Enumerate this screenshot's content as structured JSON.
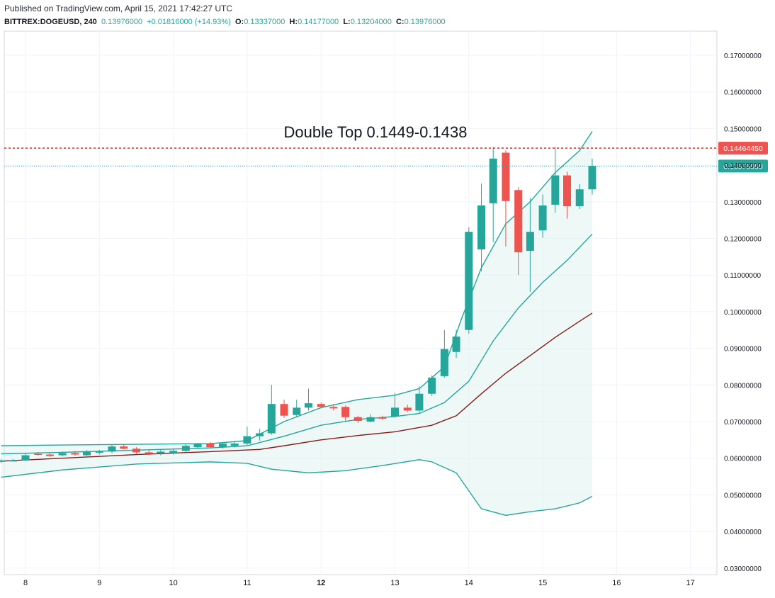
{
  "header": {
    "published": "Published on TradingView.com, April 15, 2021 17:42:27 UTC",
    "symbol": "BITTREX:DOGEUSD, 240",
    "last": "0.13976000",
    "change": "+0.01816000 (+14.93%)",
    "o_label": "O:",
    "o_value": "0.13337000",
    "h_label": "H:",
    "h_value": "0.14177000",
    "l_label": "L:",
    "l_value": "0.13204000",
    "c_label": "C:",
    "c_value": "0.13976000"
  },
  "colors": {
    "up": "#26a69a",
    "down": "#ef5350",
    "band": "#26a69a",
    "basis": "#8b1a1a",
    "fill": "#e0f2f1",
    "resistance": "#e53935",
    "grid": "#f0f3fa"
  },
  "chart_data": {
    "type": "candlestick",
    "title": "Double Top 0.1449-0.1438",
    "x_ticks": [
      {
        "label": "8",
        "x": 8
      },
      {
        "label": "9",
        "x": 9
      },
      {
        "label": "10",
        "x": 10
      },
      {
        "label": "11",
        "x": 11
      },
      {
        "label": "12",
        "x": 12
      },
      {
        "label": "13",
        "x": 13
      },
      {
        "label": "14",
        "x": 14
      },
      {
        "label": "15",
        "x": 15
      },
      {
        "label": "16",
        "x": 16
      },
      {
        "label": "17",
        "x": 17
      }
    ],
    "ylim": [
      0.0295,
      0.1755
    ],
    "xlim": [
      7.67,
      17.4
    ],
    "y_ticks": [
      "0.17000000",
      "0.16000000",
      "0.15000000",
      "0.14000000",
      "0.13000000",
      "0.12000000",
      "0.11000000",
      "0.10000000",
      "0.09000000",
      "0.08000000",
      "0.07000000",
      "0.06000000",
      "0.05000000",
      "0.04000000",
      "0.03000000"
    ],
    "price_labels": [
      {
        "text": "0.14464450",
        "value": 0.1446445,
        "kind": "resistance"
      },
      {
        "text": "0.13976000",
        "value": 0.13976,
        "kind": "last"
      }
    ],
    "resistance_line": 0.1446445,
    "last_price_line": 0.13976,
    "candles": [
      {
        "t": 7.67,
        "o": 0.059,
        "h": 0.0598,
        "l": 0.0587,
        "c": 0.0594
      },
      {
        "t": 7.83,
        "o": 0.0594,
        "h": 0.0598,
        "l": 0.0592,
        "c": 0.0594
      },
      {
        "t": 8.0,
        "o": 0.0594,
        "h": 0.0612,
        "l": 0.0592,
        "c": 0.0608
      },
      {
        "t": 8.17,
        "o": 0.0612,
        "h": 0.0617,
        "l": 0.0606,
        "c": 0.061
      },
      {
        "t": 8.33,
        "o": 0.061,
        "h": 0.0614,
        "l": 0.0604,
        "c": 0.0606
      },
      {
        "t": 8.5,
        "o": 0.0608,
        "h": 0.0618,
        "l": 0.0605,
        "c": 0.0614
      },
      {
        "t": 8.67,
        "o": 0.0614,
        "h": 0.062,
        "l": 0.0606,
        "c": 0.061
      },
      {
        "t": 8.83,
        "o": 0.0608,
        "h": 0.0622,
        "l": 0.0606,
        "c": 0.0618
      },
      {
        "t": 9.0,
        "o": 0.0616,
        "h": 0.0623,
        "l": 0.061,
        "c": 0.0618
      },
      {
        "t": 9.17,
        "o": 0.0618,
        "h": 0.0636,
        "l": 0.0614,
        "c": 0.0632
      },
      {
        "t": 9.33,
        "o": 0.0632,
        "h": 0.0636,
        "l": 0.0624,
        "c": 0.0626
      },
      {
        "t": 9.5,
        "o": 0.0626,
        "h": 0.063,
        "l": 0.0612,
        "c": 0.0616
      },
      {
        "t": 9.67,
        "o": 0.0616,
        "h": 0.0622,
        "l": 0.0608,
        "c": 0.0612
      },
      {
        "t": 9.83,
        "o": 0.0614,
        "h": 0.0624,
        "l": 0.0608,
        "c": 0.0618
      },
      {
        "t": 10.0,
        "o": 0.0614,
        "h": 0.0626,
        "l": 0.061,
        "c": 0.062
      },
      {
        "t": 10.17,
        "o": 0.062,
        "h": 0.064,
        "l": 0.0616,
        "c": 0.0634
      },
      {
        "t": 10.33,
        "o": 0.063,
        "h": 0.0642,
        "l": 0.0626,
        "c": 0.064
      },
      {
        "t": 10.5,
        "o": 0.064,
        "h": 0.0644,
        "l": 0.0628,
        "c": 0.063
      },
      {
        "t": 10.67,
        "o": 0.063,
        "h": 0.0642,
        "l": 0.0626,
        "c": 0.064
      },
      {
        "t": 10.83,
        "o": 0.0634,
        "h": 0.0644,
        "l": 0.063,
        "c": 0.064
      },
      {
        "t": 11.0,
        "o": 0.064,
        "h": 0.0686,
        "l": 0.0636,
        "c": 0.066
      },
      {
        "t": 11.17,
        "o": 0.066,
        "h": 0.068,
        "l": 0.0648,
        "c": 0.0668
      },
      {
        "t": 11.33,
        "o": 0.0668,
        "h": 0.08,
        "l": 0.0664,
        "c": 0.0748
      },
      {
        "t": 11.5,
        "o": 0.0748,
        "h": 0.076,
        "l": 0.071,
        "c": 0.0716
      },
      {
        "t": 11.67,
        "o": 0.0718,
        "h": 0.076,
        "l": 0.0712,
        "c": 0.0738
      },
      {
        "t": 11.83,
        "o": 0.0738,
        "h": 0.079,
        "l": 0.073,
        "c": 0.075
      },
      {
        "t": 12.0,
        "o": 0.0748,
        "h": 0.0752,
        "l": 0.0736,
        "c": 0.074
      },
      {
        "t": 12.17,
        "o": 0.074,
        "h": 0.0748,
        "l": 0.073,
        "c": 0.0736
      },
      {
        "t": 12.33,
        "o": 0.074,
        "h": 0.0744,
        "l": 0.07,
        "c": 0.0712
      },
      {
        "t": 12.5,
        "o": 0.0712,
        "h": 0.0716,
        "l": 0.0696,
        "c": 0.0702
      },
      {
        "t": 12.67,
        "o": 0.07,
        "h": 0.072,
        "l": 0.0698,
        "c": 0.0712
      },
      {
        "t": 12.83,
        "o": 0.0712,
        "h": 0.0716,
        "l": 0.0704,
        "c": 0.0708
      },
      {
        "t": 13.0,
        "o": 0.0714,
        "h": 0.0778,
        "l": 0.071,
        "c": 0.0738
      },
      {
        "t": 13.17,
        "o": 0.0738,
        "h": 0.0746,
        "l": 0.0726,
        "c": 0.073
      },
      {
        "t": 13.33,
        "o": 0.073,
        "h": 0.0796,
        "l": 0.0724,
        "c": 0.0776
      },
      {
        "t": 13.5,
        "o": 0.0776,
        "h": 0.0826,
        "l": 0.077,
        "c": 0.082
      },
      {
        "t": 13.67,
        "o": 0.0824,
        "h": 0.095,
        "l": 0.082,
        "c": 0.0898
      },
      {
        "t": 13.83,
        "o": 0.089,
        "h": 0.095,
        "l": 0.0874,
        "c": 0.0932
      },
      {
        "t": 14.0,
        "o": 0.095,
        "h": 0.123,
        "l": 0.094,
        "c": 0.1218
      },
      {
        "t": 14.17,
        "o": 0.117,
        "h": 0.135,
        "l": 0.111,
        "c": 0.129
      },
      {
        "t": 14.33,
        "o": 0.1296,
        "h": 0.145,
        "l": 0.119,
        "c": 0.1418
      },
      {
        "t": 14.5,
        "o": 0.1434,
        "h": 0.144,
        "l": 0.1178,
        "c": 0.1302
      },
      {
        "t": 14.67,
        "o": 0.1332,
        "h": 0.134,
        "l": 0.11,
        "c": 0.1162
      },
      {
        "t": 14.83,
        "o": 0.1166,
        "h": 0.131,
        "l": 0.1054,
        "c": 0.1218
      },
      {
        "t": 15.0,
        "o": 0.1222,
        "h": 0.132,
        "l": 0.1202,
        "c": 0.129
      },
      {
        "t": 15.17,
        "o": 0.1292,
        "h": 0.145,
        "l": 0.127,
        "c": 0.1372
      },
      {
        "t": 15.33,
        "o": 0.1372,
        "h": 0.1382,
        "l": 0.1254,
        "c": 0.1288
      },
      {
        "t": 15.5,
        "o": 0.1288,
        "h": 0.1348,
        "l": 0.128,
        "c": 0.1334
      },
      {
        "t": 15.67,
        "o": 0.1334,
        "h": 0.1418,
        "l": 0.132,
        "c": 0.1398
      }
    ],
    "bollinger": {
      "upper": [
        [
          7.67,
          0.0634
        ],
        [
          8.5,
          0.0636
        ],
        [
          9.5,
          0.0638
        ],
        [
          10.5,
          0.064
        ],
        [
          11.0,
          0.0648
        ],
        [
          11.5,
          0.07
        ],
        [
          12.0,
          0.0738
        ],
        [
          12.5,
          0.076
        ],
        [
          13.0,
          0.0772
        ],
        [
          13.33,
          0.079
        ],
        [
          13.67,
          0.085
        ],
        [
          13.9,
          0.098
        ],
        [
          14.17,
          0.112
        ],
        [
          14.5,
          0.124
        ],
        [
          14.83,
          0.13
        ],
        [
          15.17,
          0.138
        ],
        [
          15.5,
          0.144
        ],
        [
          15.67,
          0.1492
        ]
      ],
      "middle": [
        [
          7.67,
          0.0612
        ],
        [
          8.5,
          0.0616
        ],
        [
          9.5,
          0.0622
        ],
        [
          10.5,
          0.0628
        ],
        [
          11.0,
          0.0634
        ],
        [
          11.5,
          0.066
        ],
        [
          12.0,
          0.069
        ],
        [
          12.5,
          0.0706
        ],
        [
          13.0,
          0.0714
        ],
        [
          13.33,
          0.0722
        ],
        [
          13.67,
          0.0752
        ],
        [
          14.0,
          0.081
        ],
        [
          14.33,
          0.092
        ],
        [
          14.67,
          0.101
        ],
        [
          15.0,
          0.108
        ],
        [
          15.33,
          0.114
        ],
        [
          15.67,
          0.1212
        ]
      ],
      "lower": [
        [
          7.67,
          0.0548
        ],
        [
          8.5,
          0.0568
        ],
        [
          9.5,
          0.0584
        ],
        [
          10.5,
          0.059
        ],
        [
          11.0,
          0.0586
        ],
        [
          11.33,
          0.057
        ],
        [
          11.83,
          0.056
        ],
        [
          12.33,
          0.0566
        ],
        [
          12.83,
          0.058
        ],
        [
          13.33,
          0.0596
        ],
        [
          13.5,
          0.059
        ],
        [
          13.83,
          0.056
        ],
        [
          14.17,
          0.0462
        ],
        [
          14.5,
          0.0444
        ],
        [
          14.83,
          0.0454
        ],
        [
          15.17,
          0.0462
        ],
        [
          15.5,
          0.0478
        ],
        [
          15.67,
          0.0496
        ]
      ],
      "basis": [
        [
          7.67,
          0.0592
        ],
        [
          8.5,
          0.06
        ],
        [
          9.5,
          0.061
        ],
        [
          10.5,
          0.0618
        ],
        [
          11.17,
          0.0624
        ],
        [
          11.5,
          0.0634
        ],
        [
          12.0,
          0.065
        ],
        [
          12.5,
          0.0662
        ],
        [
          13.0,
          0.0672
        ],
        [
          13.5,
          0.069
        ],
        [
          13.83,
          0.0716
        ],
        [
          14.17,
          0.0776
        ],
        [
          14.5,
          0.0832
        ],
        [
          14.83,
          0.088
        ],
        [
          15.17,
          0.093
        ],
        [
          15.5,
          0.0974
        ],
        [
          15.67,
          0.0996
        ]
      ]
    }
  }
}
